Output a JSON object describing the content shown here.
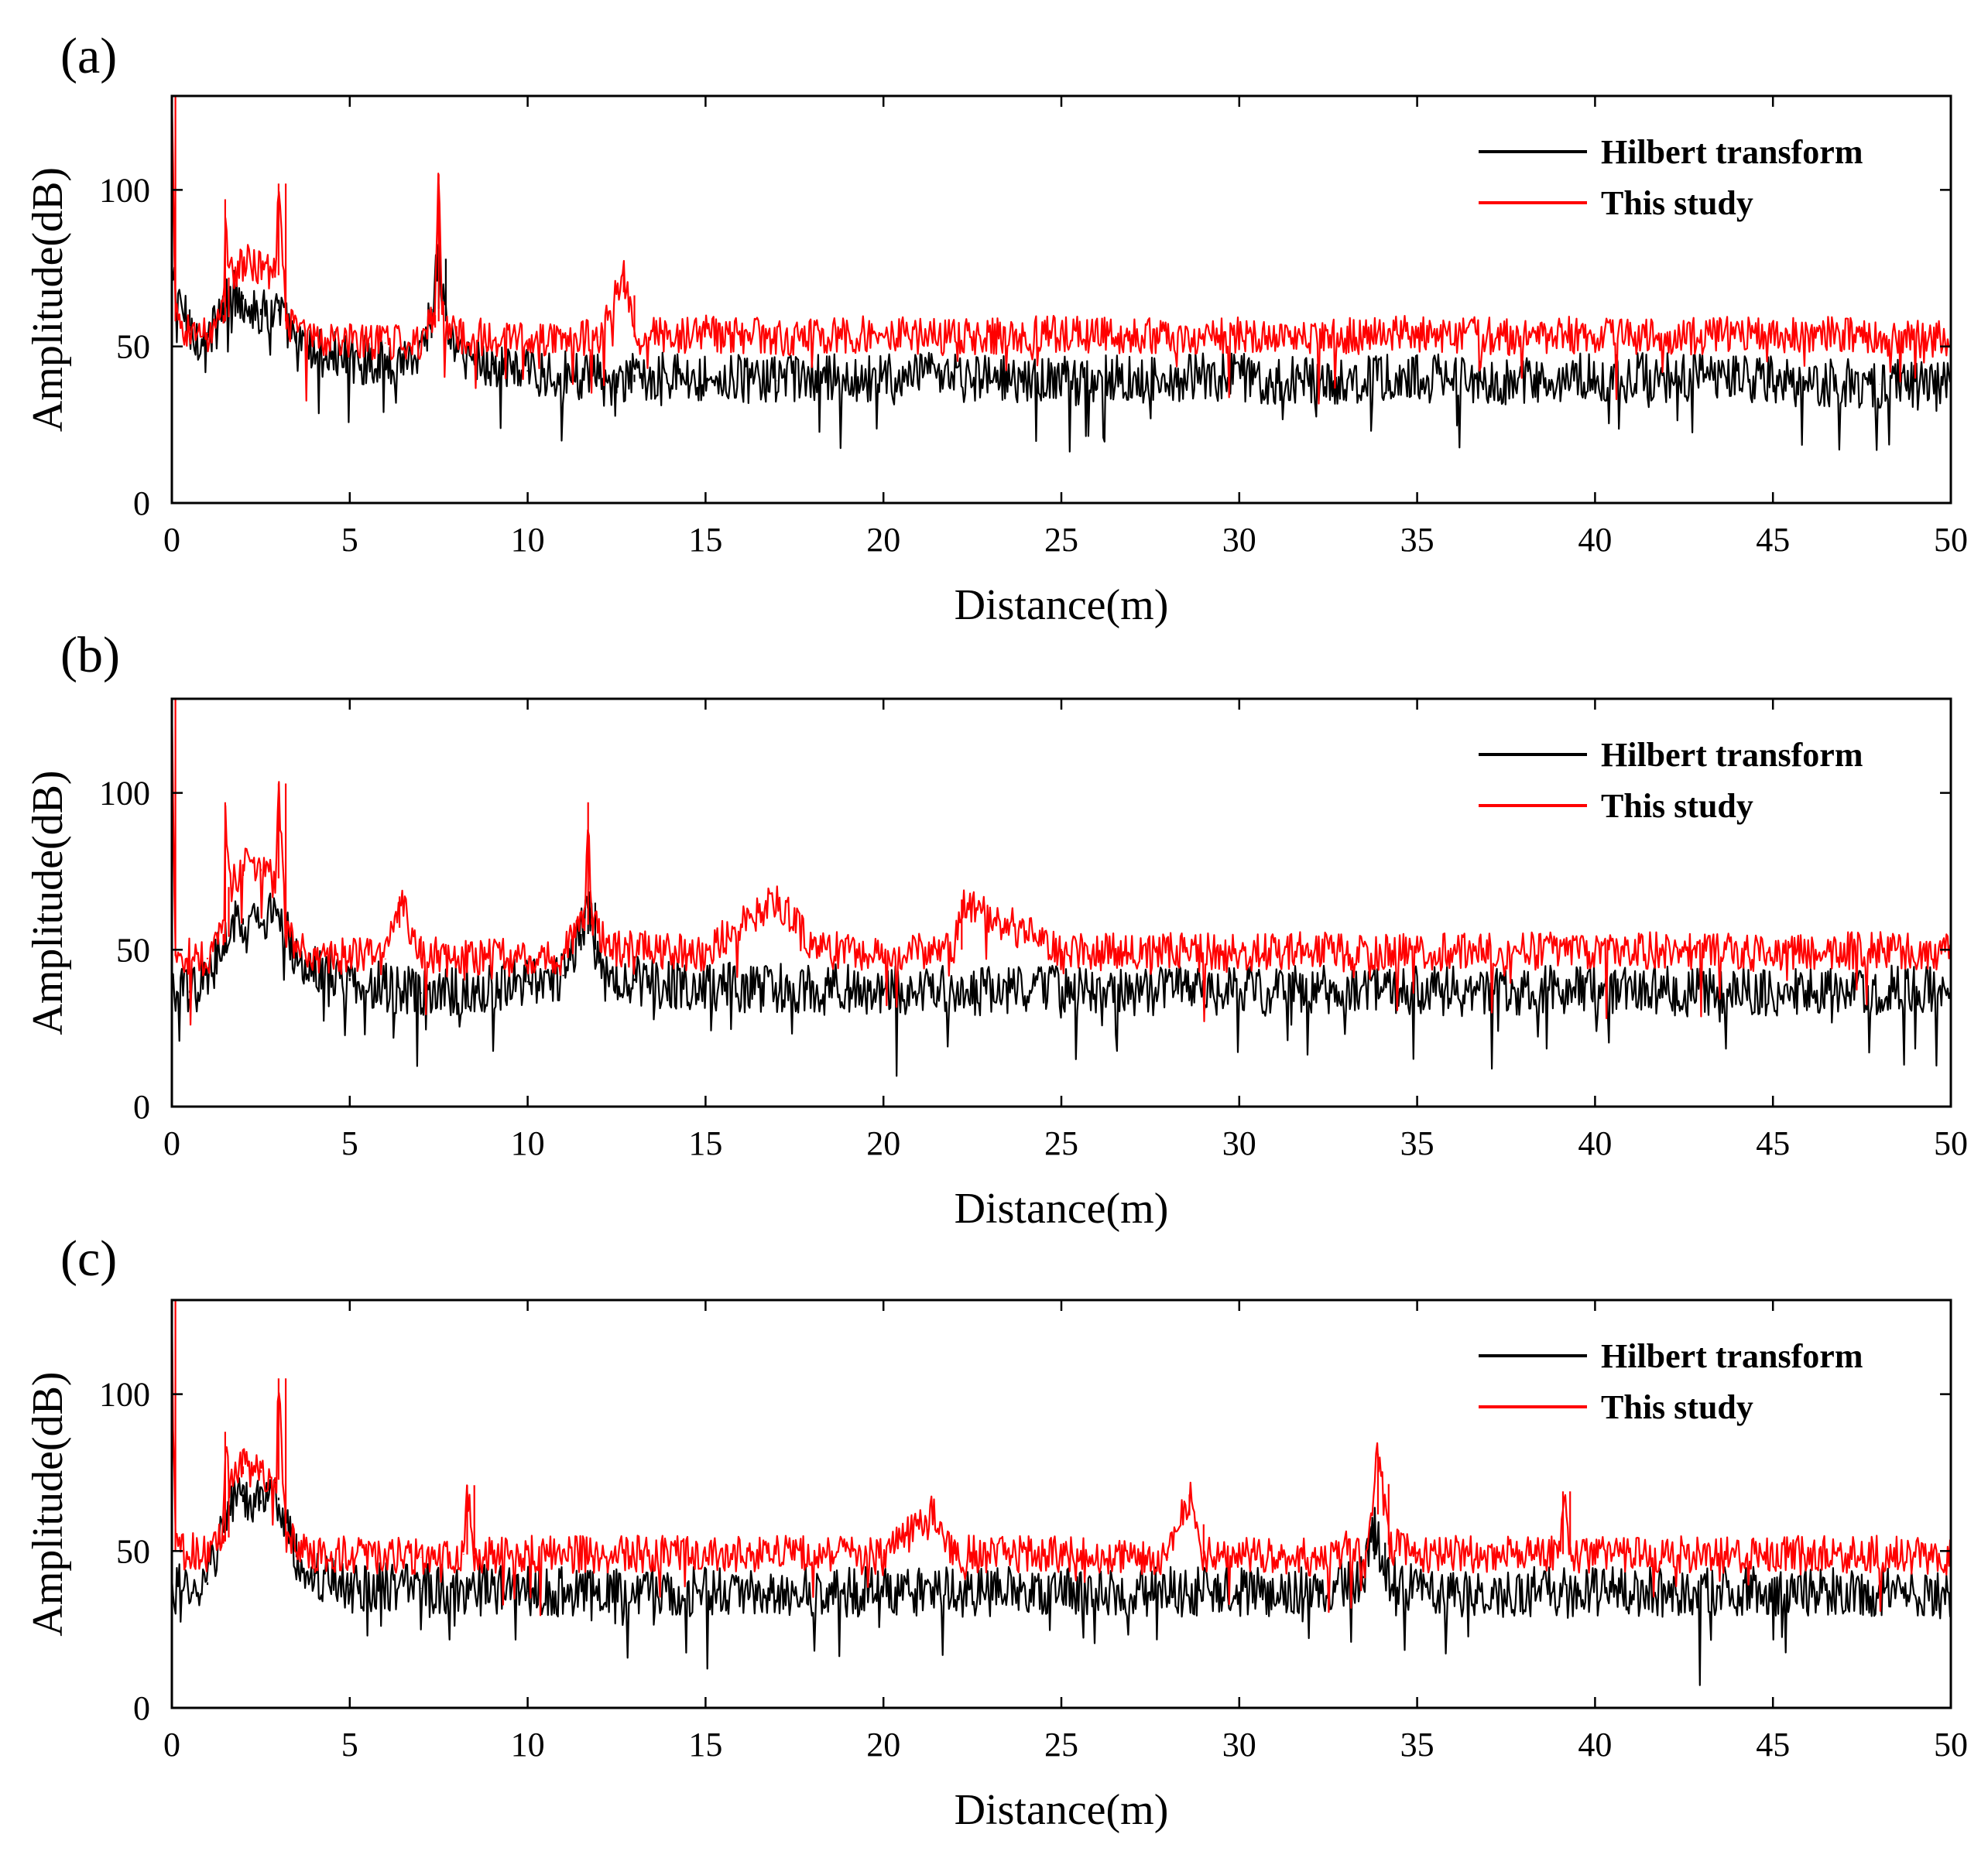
{
  "colors": {
    "hilbert": "#000000",
    "study": "#ff0000",
    "axis": "#000000",
    "background": "#ffffff"
  },
  "chart_data": [
    {
      "type": "line",
      "panel_label": "(a)",
      "xlabel": "Distance(m)",
      "ylabel": "Amplitude(dB)",
      "xlim": [
        0,
        50
      ],
      "ylim": [
        0,
        130
      ],
      "xticks": [
        "0",
        "5",
        "10",
        "15",
        "20",
        "25",
        "30",
        "35",
        "40",
        "45",
        "50"
      ],
      "yticks": [
        "0",
        "50",
        "100"
      ],
      "legend_position": "top-right",
      "series": [
        {
          "name": "Hilbert transform",
          "color": "#000000",
          "x": [
            0,
            0.5,
            1.0,
            1.5,
            1.6,
            2.0,
            2.5,
            3.0,
            3.5,
            4.0,
            5,
            6,
            7,
            7.3,
            7.5,
            7.7,
            8,
            9,
            10,
            12,
            12.5,
            13,
            15,
            17,
            20,
            22,
            25,
            28,
            30,
            32,
            35,
            38,
            40,
            42,
            45,
            48,
            50
          ],
          "y": [
            72,
            55,
            52,
            62,
            68,
            65,
            60,
            62,
            50,
            48,
            46,
            45,
            48,
            62,
            78,
            58,
            48,
            44,
            42,
            40,
            35,
            41,
            40,
            39,
            40,
            40,
            39,
            40,
            40,
            39,
            40,
            39,
            40,
            40,
            39,
            38,
            37
          ]
        },
        {
          "name": "This study",
          "color": "#ff0000",
          "x": [
            0,
            0.1,
            0.5,
            1.0,
            1.45,
            1.5,
            1.6,
            2.0,
            2.5,
            2.9,
            3.0,
            3.2,
            4.0,
            5,
            6,
            7,
            7.4,
            7.5,
            7.6,
            8,
            9,
            10,
            12,
            12.7,
            13,
            15,
            17,
            20,
            22,
            25,
            28,
            30,
            32,
            35,
            38,
            40,
            42,
            45,
            48,
            50
          ],
          "y": [
            130,
            58,
            55,
            54,
            60,
            97,
            72,
            77,
            75,
            72,
            102,
            58,
            52,
            52,
            51,
            52,
            60,
            105,
            60,
            53,
            53,
            52,
            53,
            73,
            53,
            54,
            53,
            54,
            53,
            54,
            53,
            54,
            53,
            54,
            53,
            54,
            53,
            54,
            53,
            52
          ]
        }
      ]
    },
    {
      "type": "line",
      "panel_label": "(b)",
      "xlabel": "Distance(m)",
      "ylabel": "Amplitude(dB)",
      "xlim": [
        0,
        50
      ],
      "ylim": [
        0,
        130
      ],
      "xticks": [
        "0",
        "5",
        "10",
        "15",
        "20",
        "25",
        "30",
        "35",
        "40",
        "45",
        "50"
      ],
      "yticks": [
        "0",
        "50",
        "100"
      ],
      "legend_position": "top-right",
      "series": [
        {
          "name": "Hilbert transform",
          "color": "#000000",
          "x": [
            0,
            0.5,
            1.0,
            1.5,
            2.0,
            2.5,
            3.0,
            3.5,
            4,
            5,
            6,
            7,
            8,
            9,
            10,
            11,
            11.5,
            11.7,
            11.9,
            12.5,
            13,
            15,
            17,
            20,
            22,
            25,
            28,
            30,
            32,
            35,
            38,
            40,
            42,
            45,
            48,
            50
          ],
          "y": [
            35,
            37,
            40,
            55,
            60,
            58,
            62,
            48,
            45,
            40,
            38,
            36,
            37,
            38,
            40,
            42,
            55,
            65,
            50,
            42,
            40,
            38,
            38,
            37,
            37,
            37,
            37,
            37,
            37,
            37,
            37,
            37,
            37,
            37,
            37,
            37
          ]
        },
        {
          "name": "This study",
          "color": "#ff0000",
          "x": [
            0,
            0.1,
            0.5,
            1.0,
            1.45,
            1.5,
            1.6,
            2.0,
            2.5,
            2.9,
            3.0,
            3.2,
            4.0,
            5,
            6,
            6.4,
            7,
            8,
            9,
            10,
            11,
            11.6,
            11.7,
            11.8,
            12.5,
            13.5,
            15,
            17,
            18,
            20,
            22,
            22.2,
            25,
            28,
            30,
            32,
            35,
            38,
            40,
            42,
            45,
            48,
            50
          ],
          "y": [
            130,
            48,
            48,
            47,
            55,
            97,
            70,
            77,
            75,
            72,
            103,
            55,
            48,
            48,
            47,
            67,
            48,
            48,
            48,
            47,
            48,
            60,
            97,
            58,
            50,
            50,
            49,
            67,
            50,
            49,
            50,
            66,
            49,
            50,
            49,
            50,
            49,
            50,
            49,
            50,
            49,
            50,
            49
          ]
        }
      ]
    },
    {
      "type": "line",
      "panel_label": "(c)",
      "xlabel": "Distance(m)",
      "ylabel": "Amplitude(dB)",
      "xlim": [
        0,
        50
      ],
      "ylim": [
        0,
        130
      ],
      "xticks": [
        "0",
        "5",
        "10",
        "15",
        "20",
        "25",
        "30",
        "35",
        "40",
        "45",
        "50"
      ],
      "yticks": [
        "0",
        "50",
        "100"
      ],
      "legend_position": "top-right",
      "series": [
        {
          "name": "Hilbert transform",
          "color": "#000000",
          "x": [
            0,
            0.5,
            1.0,
            1.5,
            2.0,
            2.5,
            3.0,
            3.5,
            4,
            5,
            7,
            9,
            10,
            12,
            15,
            17,
            20,
            22,
            25,
            28,
            30,
            32,
            33.5,
            33.8,
            34.1,
            35,
            37,
            39,
            40,
            42,
            45,
            48,
            50
          ],
          "y": [
            38,
            38,
            40,
            62,
            68,
            65,
            67,
            48,
            42,
            39,
            38,
            38,
            37,
            37,
            37,
            37,
            37,
            37,
            37,
            37,
            37,
            37,
            42,
            58,
            42,
            37,
            37,
            37,
            37,
            37,
            37,
            37,
            36
          ]
        },
        {
          "name": "This study",
          "color": "#ff0000",
          "x": [
            0,
            0.1,
            0.5,
            1.0,
            1.45,
            1.5,
            1.6,
            2.0,
            2.5,
            2.9,
            3.0,
            3.2,
            4.0,
            5,
            7,
            8.2,
            8.3,
            8.5,
            10,
            12,
            15,
            18,
            20,
            21.4,
            22,
            25,
            28,
            28.6,
            29,
            30,
            32,
            33.6,
            33.9,
            34.2,
            35,
            37,
            39,
            39.1,
            39.3,
            40,
            42,
            45,
            48,
            50
          ],
          "y": [
            130,
            50,
            50,
            49,
            55,
            88,
            72,
            77,
            75,
            72,
            105,
            55,
            49,
            49,
            48,
            49,
            71,
            49,
            49,
            49,
            49,
            49,
            48,
            63,
            49,
            49,
            48,
            68,
            49,
            49,
            48,
            52,
            81,
            52,
            49,
            49,
            49,
            69,
            49,
            49,
            49,
            49,
            49,
            48
          ]
        }
      ]
    }
  ]
}
